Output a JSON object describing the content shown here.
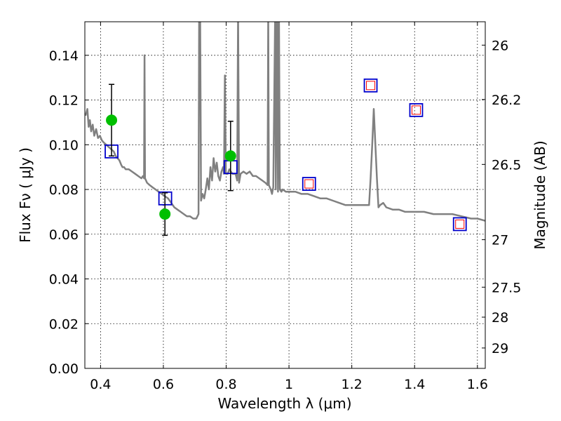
{
  "chart_data": {
    "type": "scatter",
    "xlabel": "Wavelength  λ (μm)",
    "ylabel_left": "Flux  Fν  ( μJy )",
    "ylabel_right": "Magnitude (AB)",
    "xlim": [
      0.35,
      1.625
    ],
    "ylim": [
      0.0,
      0.155
    ],
    "grid": true,
    "x_ticks": [
      0.4,
      0.6,
      0.8,
      1.0,
      1.2,
      1.4,
      1.6
    ],
    "x_tick_labels": [
      "0.4",
      "0.6",
      "0.8",
      "1",
      "1.2",
      "1.4",
      "1.6"
    ],
    "y_ticks": [
      0.0,
      0.02,
      0.04,
      0.06,
      0.08,
      0.1,
      0.12,
      0.14
    ],
    "y_tick_labels": [
      "0.00",
      "0.02",
      "0.04",
      "0.06",
      "0.08",
      "0.10",
      "0.12",
      "0.14"
    ],
    "mag_ticks": [
      26,
      26.2,
      26.5,
      27,
      27.5,
      28,
      29
    ],
    "mag_tick_labels": [
      "26",
      "26.2",
      "26.5",
      "27",
      "27.5",
      "28",
      "29"
    ],
    "colors": {
      "model": "#808080",
      "observed": "#00bf00",
      "synthetic_box": "#0000cc",
      "synthetic_inner": "#ff0000",
      "errorbar": "#000000"
    },
    "series": [
      {
        "name": "model-spectrum",
        "kind": "line",
        "points": [
          [
            0.352,
            0.113
          ],
          [
            0.358,
            0.116
          ],
          [
            0.362,
            0.108
          ],
          [
            0.366,
            0.111
          ],
          [
            0.37,
            0.106
          ],
          [
            0.375,
            0.109
          ],
          [
            0.38,
            0.104
          ],
          [
            0.386,
            0.107
          ],
          [
            0.392,
            0.103
          ],
          [
            0.398,
            0.104
          ],
          [
            0.404,
            0.102
          ],
          [
            0.41,
            0.101
          ],
          [
            0.418,
            0.1
          ],
          [
            0.426,
            0.099
          ],
          [
            0.434,
            0.098
          ],
          [
            0.442,
            0.097
          ],
          [
            0.448,
            0.095
          ],
          [
            0.454,
            0.094
          ],
          [
            0.46,
            0.093
          ],
          [
            0.466,
            0.091
          ],
          [
            0.47,
            0.09
          ],
          [
            0.475,
            0.09
          ],
          [
            0.48,
            0.089
          ],
          [
            0.49,
            0.089
          ],
          [
            0.5,
            0.088
          ],
          [
            0.51,
            0.087
          ],
          [
            0.52,
            0.086
          ],
          [
            0.53,
            0.085
          ],
          [
            0.535,
            0.086
          ],
          [
            0.5385,
            0.085
          ],
          [
            0.54,
            0.14
          ],
          [
            0.5415,
            0.085
          ],
          [
            0.548,
            0.083
          ],
          [
            0.556,
            0.082
          ],
          [
            0.565,
            0.081
          ],
          [
            0.575,
            0.08
          ],
          [
            0.585,
            0.079
          ],
          [
            0.595,
            0.078
          ],
          [
            0.605,
            0.077
          ],
          [
            0.615,
            0.076
          ],
          [
            0.625,
            0.074
          ],
          [
            0.635,
            0.072
          ],
          [
            0.645,
            0.071
          ],
          [
            0.655,
            0.07
          ],
          [
            0.665,
            0.069
          ],
          [
            0.675,
            0.068
          ],
          [
            0.685,
            0.068
          ],
          [
            0.695,
            0.067
          ],
          [
            0.705,
            0.067
          ],
          [
            0.712,
            0.069
          ],
          [
            0.714,
            0.16
          ],
          [
            0.717,
            0.16
          ],
          [
            0.72,
            0.075
          ],
          [
            0.725,
            0.078
          ],
          [
            0.73,
            0.076
          ],
          [
            0.735,
            0.08
          ],
          [
            0.74,
            0.085
          ],
          [
            0.745,
            0.08
          ],
          [
            0.75,
            0.09
          ],
          [
            0.755,
            0.084
          ],
          [
            0.76,
            0.094
          ],
          [
            0.765,
            0.088
          ],
          [
            0.77,
            0.092
          ],
          [
            0.775,
            0.086
          ],
          [
            0.78,
            0.084
          ],
          [
            0.785,
            0.088
          ],
          [
            0.79,
            0.09
          ],
          [
            0.793,
            0.087
          ],
          [
            0.796,
            0.131
          ],
          [
            0.799,
            0.087
          ],
          [
            0.805,
            0.087
          ],
          [
            0.81,
            0.089
          ],
          [
            0.815,
            0.088
          ],
          [
            0.82,
            0.087
          ],
          [
            0.825,
            0.087
          ],
          [
            0.83,
            0.087
          ],
          [
            0.835,
            0.084
          ],
          [
            0.838,
            0.16
          ],
          [
            0.841,
            0.083
          ],
          [
            0.846,
            0.087
          ],
          [
            0.855,
            0.088
          ],
          [
            0.865,
            0.087
          ],
          [
            0.875,
            0.088
          ],
          [
            0.885,
            0.086
          ],
          [
            0.895,
            0.086
          ],
          [
            0.905,
            0.085
          ],
          [
            0.915,
            0.084
          ],
          [
            0.925,
            0.083
          ],
          [
            0.932,
            0.082
          ],
          [
            0.934,
            0.16
          ],
          [
            0.936,
            0.082
          ],
          [
            0.942,
            0.08
          ],
          [
            0.946,
            0.078
          ],
          [
            0.95,
            0.081
          ],
          [
            0.956,
            0.16
          ],
          [
            0.958,
            0.08
          ],
          [
            0.962,
            0.16
          ],
          [
            0.965,
            0.079
          ],
          [
            0.968,
            0.16
          ],
          [
            0.971,
            0.08
          ],
          [
            0.976,
            0.079
          ],
          [
            0.98,
            0.08
          ],
          [
            0.99,
            0.079
          ],
          [
            1.0,
            0.079
          ],
          [
            1.02,
            0.079
          ],
          [
            1.04,
            0.078
          ],
          [
            1.06,
            0.078
          ],
          [
            1.08,
            0.077
          ],
          [
            1.1,
            0.076
          ],
          [
            1.12,
            0.076
          ],
          [
            1.14,
            0.075
          ],
          [
            1.16,
            0.074
          ],
          [
            1.18,
            0.073
          ],
          [
            1.2,
            0.073
          ],
          [
            1.22,
            0.073
          ],
          [
            1.24,
            0.073
          ],
          [
            1.255,
            0.073
          ],
          [
            1.26,
            0.085
          ],
          [
            1.265,
            0.1
          ],
          [
            1.27,
            0.116
          ],
          [
            1.275,
            0.1
          ],
          [
            1.28,
            0.085
          ],
          [
            1.285,
            0.072
          ],
          [
            1.29,
            0.073
          ],
          [
            1.3,
            0.074
          ],
          [
            1.31,
            0.072
          ],
          [
            1.33,
            0.071
          ],
          [
            1.35,
            0.071
          ],
          [
            1.37,
            0.07
          ],
          [
            1.4,
            0.07
          ],
          [
            1.43,
            0.07
          ],
          [
            1.46,
            0.069
          ],
          [
            1.49,
            0.069
          ],
          [
            1.52,
            0.069
          ],
          [
            1.55,
            0.068
          ],
          [
            1.58,
            0.067
          ],
          [
            1.6,
            0.067
          ],
          [
            1.625,
            0.066
          ]
        ]
      },
      {
        "name": "observed-photometry",
        "kind": "points-with-errorbars",
        "x": [
          0.435,
          0.605,
          0.814
        ],
        "y": [
          0.111,
          0.069,
          0.095
        ],
        "yerr": [
          0.016,
          0.0095,
          0.0155
        ]
      },
      {
        "name": "synthetic-photometry-detected",
        "kind": "open-squares",
        "x": [
          0.435,
          0.606,
          0.814
        ],
        "y": [
          0.097,
          0.076,
          0.09
        ]
      },
      {
        "name": "synthetic-photometry-predicted",
        "kind": "open-squares-with-inner",
        "x": [
          1.064,
          1.26,
          1.405,
          1.544
        ],
        "y": [
          0.0825,
          0.1265,
          0.1155,
          0.0645
        ]
      }
    ]
  }
}
